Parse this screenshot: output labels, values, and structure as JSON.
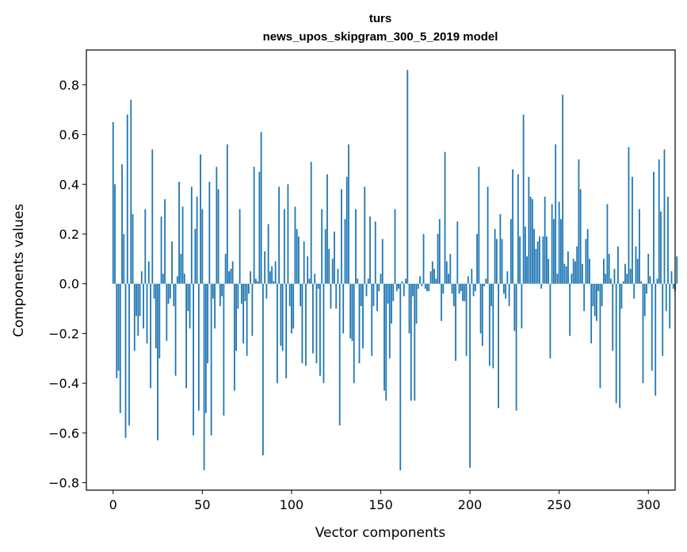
{
  "chart_data": {
    "type": "bar",
    "title": "turs",
    "subtitle": "news_upos_skipgram_300_5_2019 model",
    "xlabel": "Vector components",
    "ylabel": "Components values",
    "xlim": [
      -15,
      315
    ],
    "ylim": [
      -0.83,
      0.94
    ],
    "xticks": [
      0,
      50,
      100,
      150,
      200,
      250,
      300
    ],
    "xtick_labels": [
      "0",
      "50",
      "100",
      "150",
      "200",
      "250",
      "300"
    ],
    "yticks": [
      -0.8,
      -0.6,
      -0.4,
      -0.2,
      0.0,
      0.2,
      0.4,
      0.6,
      0.8
    ],
    "ytick_labels": [
      "−0.8",
      "−0.6",
      "−0.4",
      "−0.2",
      "0.0",
      "0.2",
      "0.4",
      "0.6",
      "0.8"
    ],
    "grid": false,
    "bar_color": "#1f77b4",
    "series": [
      {
        "x_start": 0,
        "values": [
          0.65,
          0.4,
          -0.38,
          -0.35,
          -0.52,
          0.48,
          0.2,
          -0.62,
          0.68,
          -0.57,
          0.74,
          0.28,
          -0.27,
          -0.13,
          -0.21,
          -0.13,
          0.05,
          -0.18,
          0.3,
          -0.24,
          0.09,
          -0.42,
          0.54,
          -0.06,
          -0.26,
          -0.63,
          -0.3,
          0.27,
          0.04,
          0.34,
          -0.23,
          -0.08,
          -0.06,
          0.17,
          -0.09,
          -0.37,
          0.03,
          0.41,
          0.12,
          0.31,
          0.04,
          -0.42,
          -0.11,
          -0.18,
          0.39,
          -0.61,
          0.22,
          0.35,
          -0.51,
          0.52,
          0.3,
          -0.75,
          -0.52,
          -0.32,
          0.41,
          -0.61,
          -0.06,
          -0.18,
          0.47,
          0.38,
          -0.09,
          -0.05,
          -0.53,
          0.12,
          0.56,
          0.05,
          0.06,
          0.09,
          -0.43,
          -0.27,
          -0.1,
          0.3,
          -0.08,
          -0.24,
          -0.07,
          -0.29,
          -0.04,
          0.05,
          -0.21,
          0.47,
          0.02,
          0.01,
          0.45,
          0.61,
          -0.69,
          0.13,
          -0.06,
          0.24,
          0.05,
          0.07,
          0.01,
          0.09,
          -0.4,
          0.39,
          -0.25,
          -0.27,
          0.3,
          -0.38,
          0.4,
          -0.09,
          -0.2,
          -0.18,
          0.31,
          0.22,
          0.19,
          -0.09,
          -0.32,
          0.17,
          -0.33,
          0.11,
          0.02,
          0.49,
          -0.28,
          0.04,
          -0.32,
          -0.02,
          -0.37,
          0.3,
          -0.4,
          0.22,
          0.44,
          0.14,
          -0.1,
          0.1,
          0.21,
          -0.1,
          0.06,
          -0.57,
          0.38,
          -0.2,
          0.26,
          0.43,
          0.56,
          -0.22,
          -0.23,
          -0.4,
          0.3,
          0.02,
          -0.32,
          -0.09,
          -0.26,
          0.39,
          -0.05,
          0.02,
          0.27,
          -0.29,
          -0.09,
          0.25,
          -0.11,
          -0.03,
          0.04,
          0.18,
          -0.43,
          -0.47,
          -0.08,
          -0.3,
          -0.16,
          -0.07,
          0.3,
          -0.03,
          -0.02,
          -0.75,
          0.01,
          -0.05,
          0.02,
          0.86,
          -0.2,
          -0.47,
          -0.05,
          -0.47,
          -0.16,
          -0.02,
          0.03,
          -0.01,
          0.2,
          -0.02,
          -0.03,
          -0.03,
          0.05,
          0.09,
          0.06,
          0.02,
          0.2,
          0.26,
          -0.15,
          -0.04,
          0.53,
          0.09,
          0.04,
          0.12,
          -0.04,
          -0.09,
          -0.31,
          0.25,
          -0.04,
          -0.03,
          -0.07,
          -0.07,
          -0.29,
          0.03,
          -0.74,
          0.06,
          -0.05,
          -0.03,
          0.2,
          0.47,
          -0.2,
          -0.25,
          -0.01,
          0.02,
          0.39,
          -0.33,
          -0.09,
          -0.34,
          0.22,
          0.18,
          -0.5,
          0.28,
          0.18,
          -0.04,
          -0.06,
          0.05,
          -0.09,
          0.26,
          0.46,
          -0.19,
          -0.51,
          0.44,
          0.19,
          -0.18,
          0.68,
          0.23,
          0.11,
          0.43,
          0.35,
          0.34,
          0.22,
          0.14,
          0.17,
          0.19,
          -0.02,
          0.19,
          0.35,
          0.19,
          0.1,
          -0.3,
          0.32,
          0.26,
          0.56,
          0.04,
          0.33,
          0.26,
          0.76,
          0.08,
          0.07,
          0.13,
          -0.21,
          0.04,
          0.1,
          0.09,
          0.15,
          0.5,
          0.38,
          0.08,
          -0.11,
          0.18,
          0.22,
          0.1,
          -0.24,
          -0.09,
          -0.13,
          -0.15,
          -0.03,
          -0.42,
          -0.09,
          0.1,
          0.04,
          0.32,
          0.12,
          0.02,
          -0.27,
          0.06,
          -0.48,
          0.15,
          -0.5,
          -0.1,
          0.01,
          0.08,
          0.04,
          0.55,
          0.06,
          0.43,
          -0.06,
          0.15,
          0.1,
          0.3,
          0.01,
          -0.4,
          -0.13,
          -0.04,
          0.12,
          0.03,
          -0.35,
          0.45,
          -0.45,
          0.02,
          0.5,
          0.29,
          -0.29,
          0.54,
          -0.11,
          0.35,
          -0.18,
          0.05,
          -0.02,
          -0.03,
          0.11
        ]
      }
    ]
  }
}
